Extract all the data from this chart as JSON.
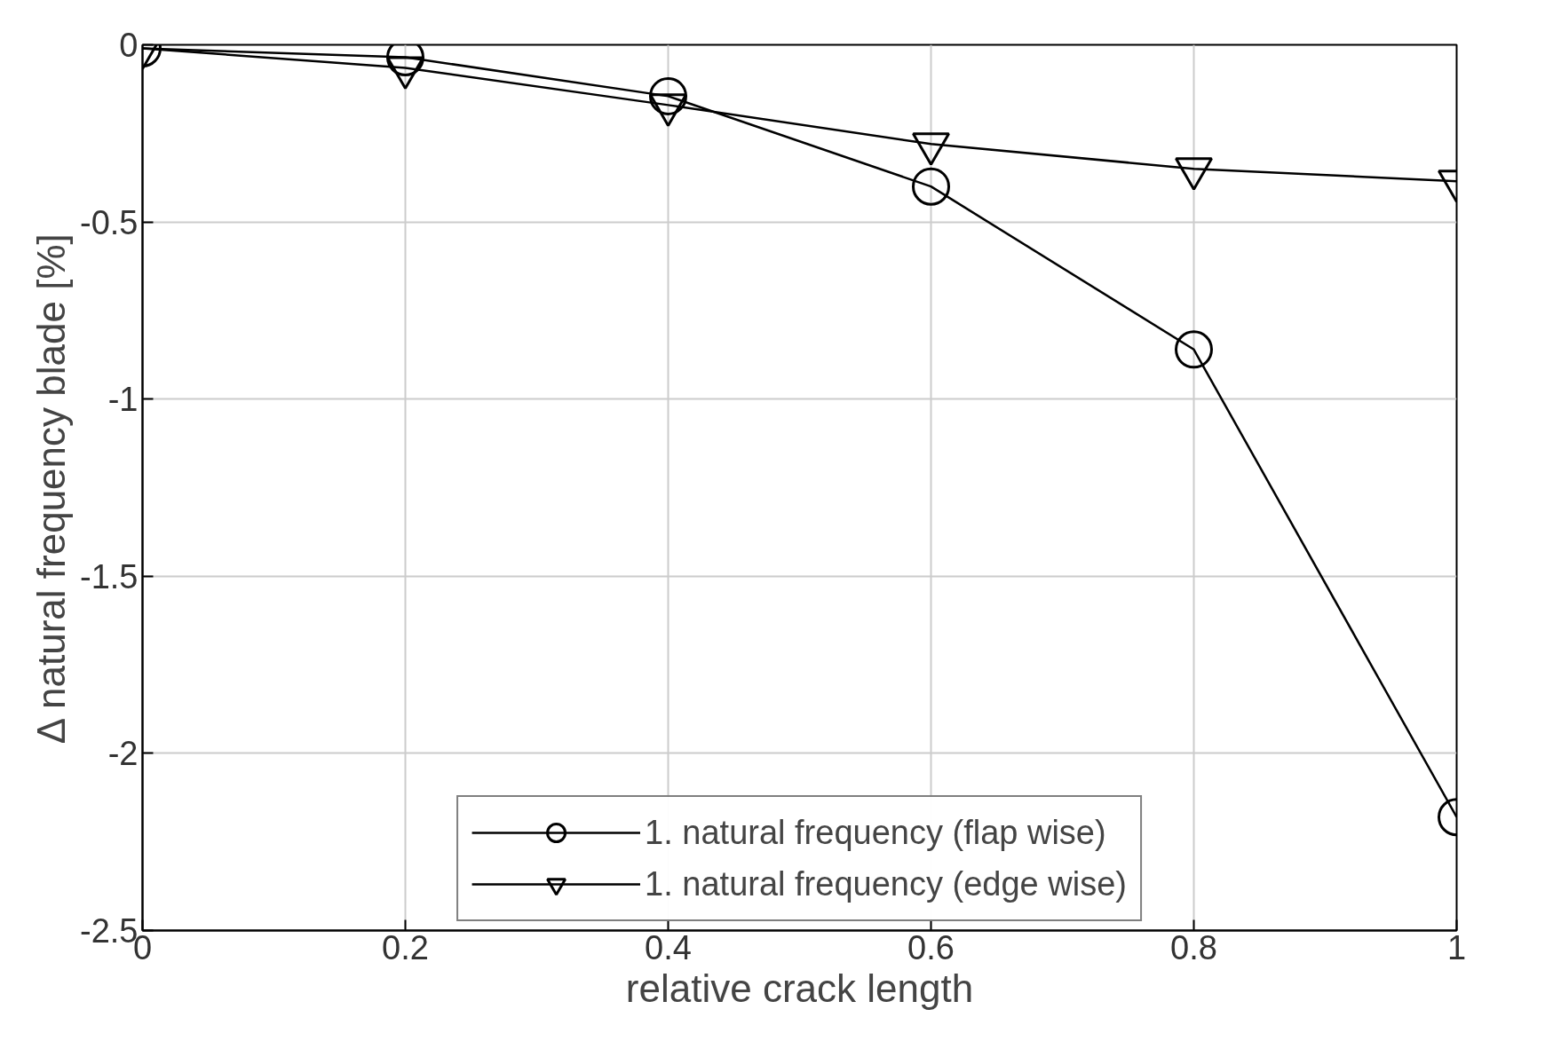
{
  "chart_data": {
    "type": "line",
    "xlabel": "relative crack length",
    "ylabel": "Δ natural frequency blade [%]",
    "x": [
      0,
      0.2,
      0.4,
      0.6,
      0.8,
      1
    ],
    "series": [
      {
        "name": "1. natural frequency (flap wise)",
        "color": "#000000",
        "marker": "circle",
        "values": [
          -0.01,
          -0.035,
          -0.145,
          -0.4,
          -0.86,
          -2.18
        ]
      },
      {
        "name": "1. natural frequency (edge wise)",
        "color": "#000000",
        "marker": "triangle",
        "values": [
          -0.01,
          -0.065,
          -0.17,
          -0.28,
          -0.35,
          -0.385
        ]
      }
    ],
    "xlim": [
      0,
      1
    ],
    "ylim": [
      -2.5,
      0
    ],
    "xticks": [
      0,
      0.2,
      0.4,
      0.6,
      0.8,
      1
    ],
    "yticks": [
      -2.5,
      -2,
      -1.5,
      -1,
      -0.5,
      0
    ],
    "grid": true,
    "legend": "bottom",
    "line_style": "solid"
  }
}
